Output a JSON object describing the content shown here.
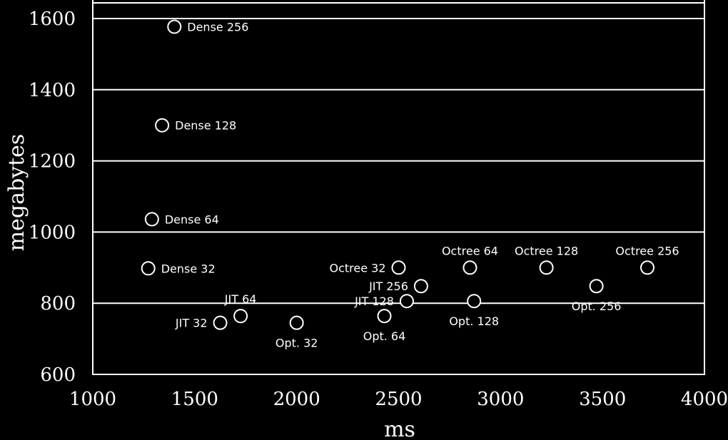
{
  "chart_data": {
    "type": "scatter",
    "title": "",
    "xlabel": "ms",
    "ylabel": "megabytes",
    "xlim": [
      1000,
      4000
    ],
    "ylim": [
      600,
      1650
    ],
    "xticks": [
      1000,
      1500,
      2000,
      2500,
      3000,
      3500,
      4000
    ],
    "yticks": [
      600,
      800,
      1000,
      1200,
      1400,
      1600
    ],
    "grid": "horizontal",
    "legend": "none",
    "colors": {
      "background": "#000000",
      "foreground": "#ffffff"
    },
    "points": [
      {
        "label": "Dense 256",
        "x": 1400,
        "y": 1577,
        "label_pos": "right"
      },
      {
        "label": "Dense 128",
        "x": 1340,
        "y": 1300,
        "label_pos": "right"
      },
      {
        "label": "Dense 64",
        "x": 1290,
        "y": 1036,
        "label_pos": "right"
      },
      {
        "label": "Dense 32",
        "x": 1272,
        "y": 898,
        "label_pos": "right"
      },
      {
        "label": "JIT 32",
        "x": 1625,
        "y": 745,
        "label_pos": "left"
      },
      {
        "label": "JIT 64",
        "x": 1725,
        "y": 764,
        "label_pos": "above"
      },
      {
        "label": "Opt. 32",
        "x": 2000,
        "y": 745,
        "label_pos": "below"
      },
      {
        "label": "Opt. 64",
        "x": 2430,
        "y": 764,
        "label_pos": "below"
      },
      {
        "label": "JIT 128",
        "x": 2540,
        "y": 806,
        "label_pos": "left"
      },
      {
        "label": "Octree 32",
        "x": 2500,
        "y": 900,
        "label_pos": "left"
      },
      {
        "label": "JIT 256",
        "x": 2610,
        "y": 848,
        "label_pos": "left"
      },
      {
        "label": "Octree 64",
        "x": 2850,
        "y": 900,
        "label_pos": "above"
      },
      {
        "label": "Opt. 128",
        "x": 2870,
        "y": 806,
        "label_pos": "below"
      },
      {
        "label": "Octree 128",
        "x": 3225,
        "y": 900,
        "label_pos": "above"
      },
      {
        "label": "Opt. 256",
        "x": 3470,
        "y": 848,
        "label_pos": "below"
      },
      {
        "label": "Octree 256",
        "x": 3720,
        "y": 900,
        "label_pos": "above"
      }
    ]
  }
}
